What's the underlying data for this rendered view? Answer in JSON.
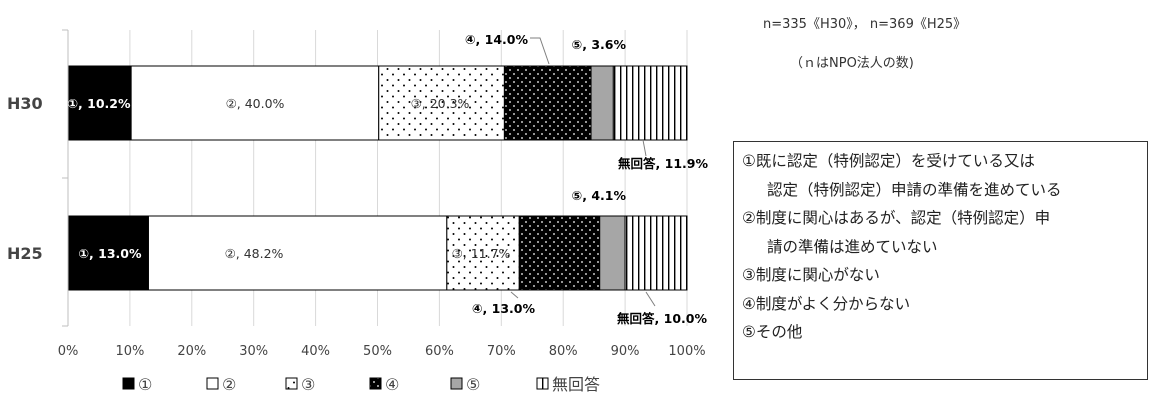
{
  "chart_data": {
    "type": "bar",
    "orientation": "horizontal",
    "stacked": true,
    "percent": true,
    "categories": [
      "H30",
      "H25"
    ],
    "series": [
      {
        "name": "①",
        "values": [
          10.2,
          13.0
        ],
        "fill": "#000000"
      },
      {
        "name": "②",
        "values": [
          40.0,
          48.2
        ],
        "fill": "#ffffff"
      },
      {
        "name": "③",
        "values": [
          20.3,
          11.7
        ],
        "fill": "#ffffff"
      },
      {
        "name": "④",
        "values": [
          14.0,
          13.0
        ],
        "fill": "#000000"
      },
      {
        "name": "⑤",
        "values": [
          3.6,
          4.1
        ],
        "fill": "#a6a6a6"
      },
      {
        "name": "無回答",
        "values": [
          11.9,
          10.0
        ],
        "fill": "#ffffff"
      }
    ],
    "data_labels": [
      [
        "①, 10.2%",
        "②, 40.0%",
        "③, 20.3%",
        "④, 14.0%",
        "⑤, 3.6%",
        "無回答, 11.9%"
      ],
      [
        "①, 13.0%",
        "②, 48.2%",
        "③, 11.7%",
        "④, 13.0%",
        "⑤, 4.1%",
        "無回答, 10.0%"
      ]
    ],
    "x_ticks": [
      "0%",
      "10%",
      "20%",
      "30%",
      "40%",
      "50%",
      "60%",
      "70%",
      "80%",
      "90%",
      "100%"
    ],
    "xlim": [
      0,
      100
    ],
    "grid": true,
    "legend_position": "bottom"
  },
  "notes": {
    "sample": "n=335《H30》， n=369《H25》",
    "unit": "（ｎはNPO法人の数)"
  },
  "definitions": [
    {
      "text": "①既に認定（特例認定）を受けている又は",
      "indent": false
    },
    {
      "text": "認定（特例認定）申請の準備を進めている",
      "indent": true
    },
    {
      "text": "②制度に関心はあるが、認定（特例認定）申",
      "indent": false
    },
    {
      "text": "請の準備は進めていない",
      "indent": true
    },
    {
      "text": "③制度に関心がない",
      "indent": false
    },
    {
      "text": "④制度がよく分からない",
      "indent": false
    },
    {
      "text": "⑤その他",
      "indent": false
    }
  ]
}
